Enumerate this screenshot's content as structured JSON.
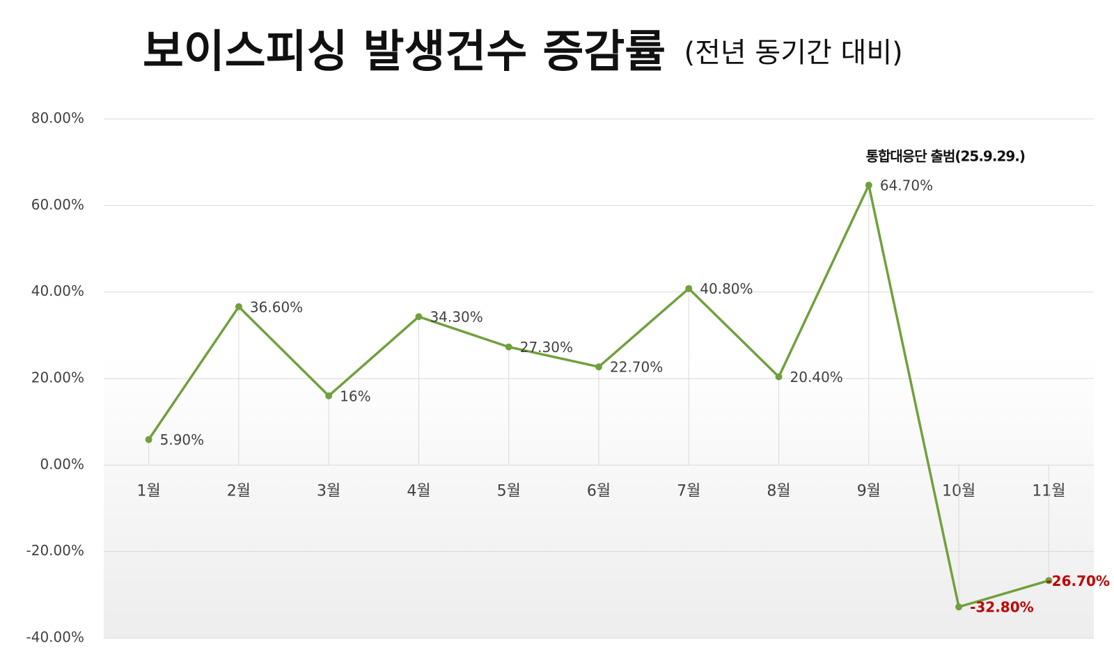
{
  "chart_data": {
    "type": "line",
    "title": "보이스피싱 발생건수 증감률",
    "subtitle": "(전년 동기간 대비)",
    "annotation": "통합대응단 출범(25.9.29.)",
    "categories": [
      "1월",
      "2월",
      "3월",
      "4월",
      "5월",
      "6월",
      "7월",
      "8월",
      "9월",
      "10월",
      "11월"
    ],
    "series": [
      {
        "name": "증감률",
        "color": "#70a03c",
        "values": [
          5.9,
          36.6,
          16,
          34.3,
          27.3,
          22.7,
          40.8,
          20.4,
          64.7,
          -32.8,
          -26.7
        ],
        "value_labels": [
          "5.90%",
          "36.60%",
          "16%",
          "34.30%",
          "27.30%",
          "22.70%",
          "40.80%",
          "20.40%",
          "64.70%",
          "-32.80%",
          "-26.70%"
        ]
      }
    ],
    "negative_label_color": "#c00000",
    "ylim": [
      -40,
      80
    ],
    "yticks": [
      {
        "value": -40,
        "label": "-40.00%"
      },
      {
        "value": -20,
        "label": "-20.00%"
      },
      {
        "value": 0,
        "label": "0.00%"
      },
      {
        "value": 20,
        "label": "20.00%"
      },
      {
        "value": 40,
        "label": "40.00%"
      },
      {
        "value": 60,
        "label": "60.00%"
      },
      {
        "value": 80,
        "label": "80.00%"
      }
    ],
    "grid": true
  }
}
